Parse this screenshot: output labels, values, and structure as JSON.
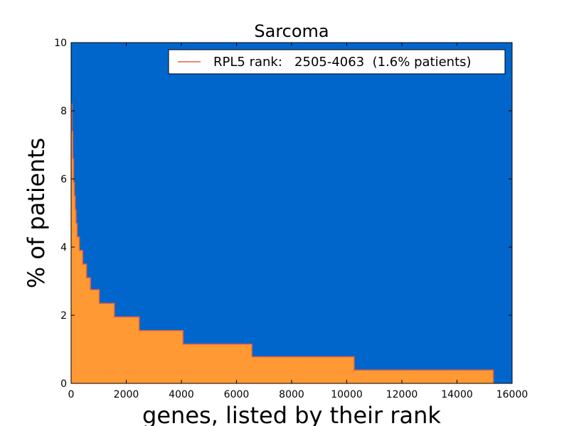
{
  "chart_data": {
    "type": "area",
    "title": "Sarcoma",
    "xlabel": "genes, listed by their rank",
    "ylabel": "% of patients",
    "xlim": [
      0,
      16000
    ],
    "ylim": [
      0,
      10
    ],
    "xticks": [
      0,
      2000,
      4000,
      6000,
      8000,
      10000,
      12000,
      14000,
      16000
    ],
    "yticks": [
      0,
      2,
      4,
      6,
      8,
      10
    ],
    "background_color": "#0066cc",
    "fill_color": "#ff9933",
    "line_color": "#e8603c",
    "legend": {
      "position": "top-right",
      "label": "RPL5 rank:   2505-4063  (1.6% patients)"
    },
    "steps": [
      {
        "x": 0,
        "y": 8.2
      },
      {
        "x": 30,
        "y": 7.4
      },
      {
        "x": 60,
        "y": 6.6
      },
      {
        "x": 90,
        "y": 5.9
      },
      {
        "x": 120,
        "y": 5.5
      },
      {
        "x": 150,
        "y": 5.1
      },
      {
        "x": 180,
        "y": 4.7
      },
      {
        "x": 220,
        "y": 4.3
      },
      {
        "x": 300,
        "y": 3.9
      },
      {
        "x": 420,
        "y": 3.5
      },
      {
        "x": 560,
        "y": 3.1
      },
      {
        "x": 700,
        "y": 2.75
      },
      {
        "x": 1020,
        "y": 2.35
      },
      {
        "x": 1570,
        "y": 1.95
      },
      {
        "x": 2470,
        "y": 1.55
      },
      {
        "x": 4060,
        "y": 1.15
      },
      {
        "x": 6560,
        "y": 0.78
      },
      {
        "x": 10270,
        "y": 0.39
      },
      {
        "x": 15320,
        "y": 0
      }
    ]
  }
}
